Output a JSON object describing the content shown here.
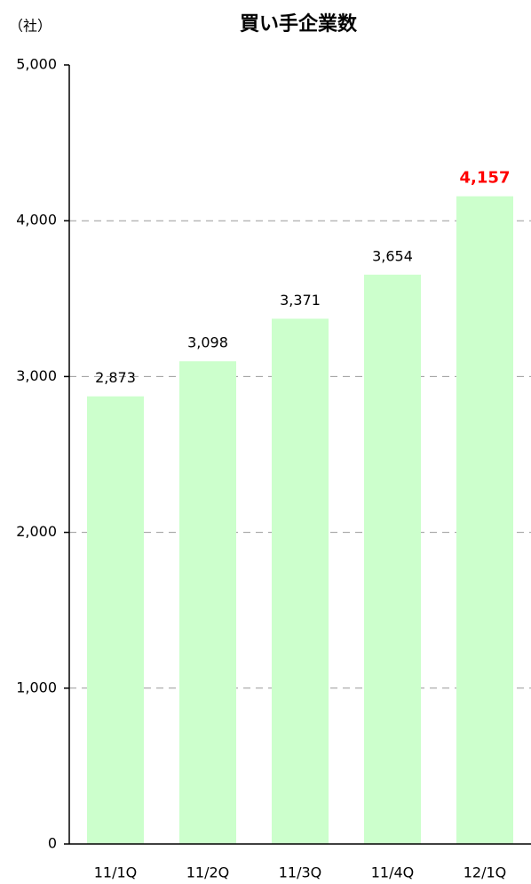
{
  "chart_data": {
    "type": "bar",
    "title": "買い手企業数",
    "unit_label": "（社）",
    "categories": [
      "11/1Q",
      "11/2Q",
      "11/3Q",
      "11/4Q",
      "12/1Q"
    ],
    "values": [
      2873,
      3098,
      3371,
      3654,
      4157
    ],
    "value_labels": [
      "2,873",
      "3,098",
      "3,371",
      "3,654",
      "4,157"
    ],
    "value_label_colors": [
      "#000000",
      "#000000",
      "#000000",
      "#000000",
      "#ff0000"
    ],
    "color": "#ccffcc",
    "ylim": [
      0,
      5000
    ],
    "yticks": [
      0,
      {
        "value": 1000,
        "label": "1,000"
      },
      {
        "value": 2000,
        "label": "2,000"
      },
      {
        "value": 3000,
        "label": "3,000"
      },
      {
        "value": 4000,
        "label": "4,000"
      },
      {
        "value": 5000,
        "label": "5,000"
      }
    ],
    "grid": true
  }
}
